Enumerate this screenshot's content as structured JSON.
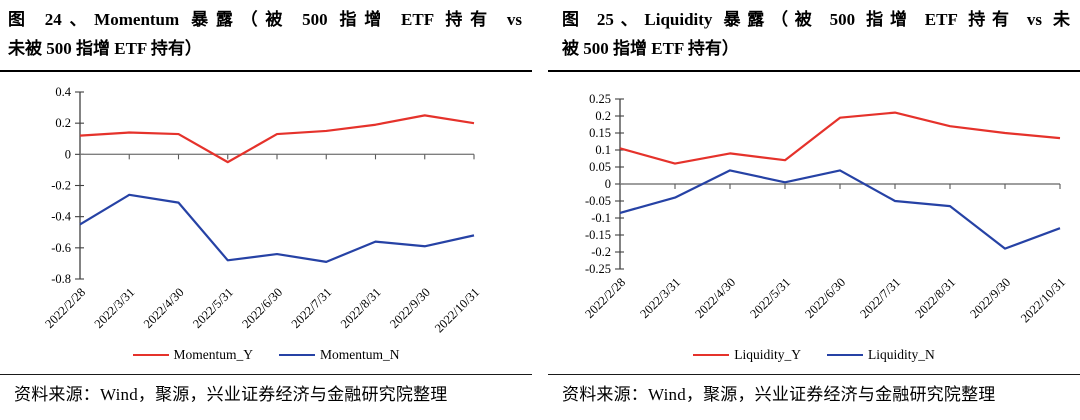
{
  "page": {
    "background": "#ffffff"
  },
  "colors": {
    "axis": "#404040",
    "zero_line": "#7f7f7f",
    "rule": "#000000",
    "red_series": "#e5322b",
    "blue_series": "#2642a5"
  },
  "chart_data": [
    {
      "type": "line",
      "title": "图 24、Momentum 暴露（被 500 指增 ETF 持有 vs 未被 500 指增 ETF 持有）",
      "title_lines": [
        "图 24、Momentum 暴露（被 500 指增 ETF 持有  vs",
        "未被 500 指增 ETF 持有）"
      ],
      "x": [
        "2022/2/28",
        "2022/3/31",
        "2022/4/30",
        "2022/5/31",
        "2022/6/30",
        "2022/7/31",
        "2022/8/31",
        "2022/9/30",
        "2022/10/31"
      ],
      "series": [
        {
          "name": "Momentum_Y",
          "color": "#e5322b",
          "values": [
            0.12,
            0.14,
            0.13,
            -0.05,
            0.13,
            0.15,
            0.19,
            0.25,
            0.2
          ]
        },
        {
          "name": "Momentum_N",
          "color": "#2642a5",
          "values": [
            -0.45,
            -0.26,
            -0.31,
            -0.68,
            -0.64,
            -0.69,
            -0.56,
            -0.59,
            -0.52
          ]
        }
      ],
      "ylim": [
        -0.8,
        0.4
      ],
      "yticks": [
        0.4,
        0.2,
        0,
        -0.2,
        -0.4,
        -0.6,
        -0.8
      ],
      "grid": false,
      "legend_position": "bottom",
      "source": "资料来源：Wind，聚源，兴业证券经济与金融研究院整理"
    },
    {
      "type": "line",
      "title": "图 25、Liquidity 暴露（被 500 指增 ETF 持有 vs 未被 500 指增 ETF 持有）",
      "title_lines": [
        "图 25、Liquidity 暴露（被 500 指增 ETF 持有  vs  未",
        "被 500 指增 ETF 持有）"
      ],
      "x": [
        "2022/2/28",
        "2022/3/31",
        "2022/4/30",
        "2022/5/31",
        "2022/6/30",
        "2022/7/31",
        "2022/8/31",
        "2022/9/30",
        "2022/10/31"
      ],
      "series": [
        {
          "name": "Liquidity_Y",
          "color": "#e5322b",
          "values": [
            0.105,
            0.06,
            0.09,
            0.07,
            0.195,
            0.21,
            0.17,
            0.15,
            0.135
          ]
        },
        {
          "name": "Liquidity_N",
          "color": "#2642a5",
          "values": [
            -0.085,
            -0.04,
            0.04,
            0.005,
            0.04,
            -0.05,
            -0.065,
            -0.19,
            -0.13
          ]
        }
      ],
      "ylim": [
        -0.25,
        0.25
      ],
      "yticks": [
        0.25,
        0.2,
        0.15,
        0.1,
        0.05,
        0,
        -0.05,
        -0.1,
        -0.15,
        -0.2,
        -0.25
      ],
      "grid": false,
      "legend_position": "bottom",
      "source": "资料来源：Wind，聚源，兴业证券经济与金融研究院整理"
    }
  ]
}
